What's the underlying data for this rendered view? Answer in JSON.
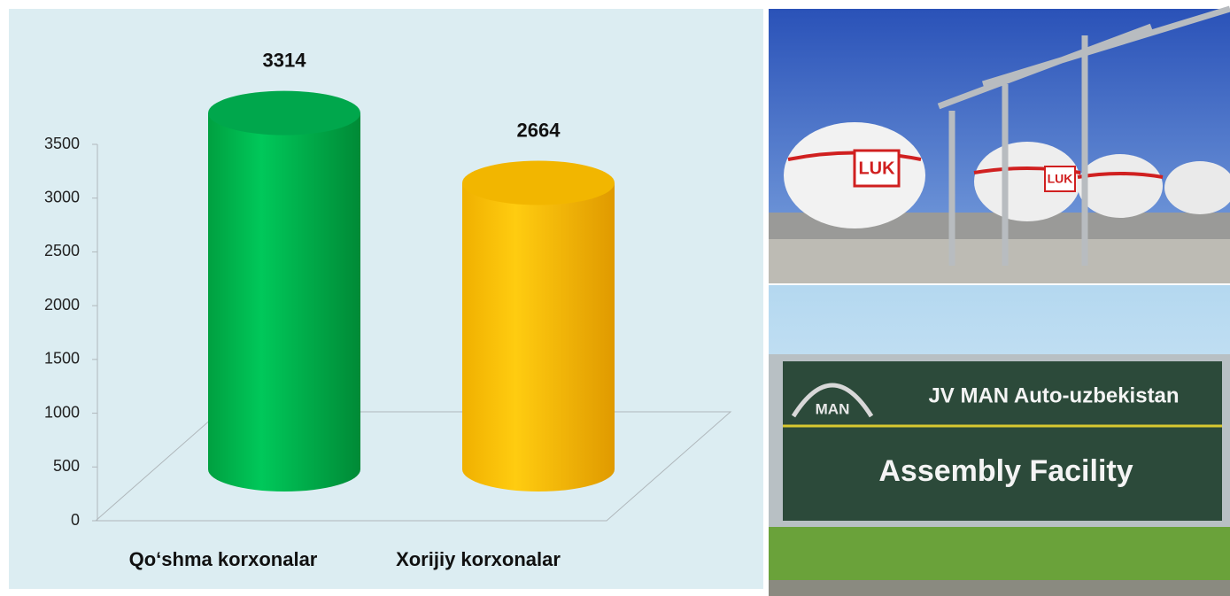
{
  "chart_data": {
    "type": "cylinder_bar",
    "categories": [
      "Qo‘shma korxonalar",
      "Xorijiy korxonalar"
    ],
    "values": [
      3314,
      2664
    ],
    "colors": [
      "#00b050",
      "#ffc000"
    ],
    "ylim": [
      0,
      3500
    ],
    "yticks": [
      0,
      500,
      1000,
      1500,
      2000,
      2500,
      3000,
      3500
    ]
  },
  "photos": {
    "tanks": {
      "logo": "LUK"
    },
    "sign": {
      "logo": "MAN",
      "line1": "JV MAN Auto-uzbekistan",
      "line2": "Assembly Facility"
    }
  }
}
